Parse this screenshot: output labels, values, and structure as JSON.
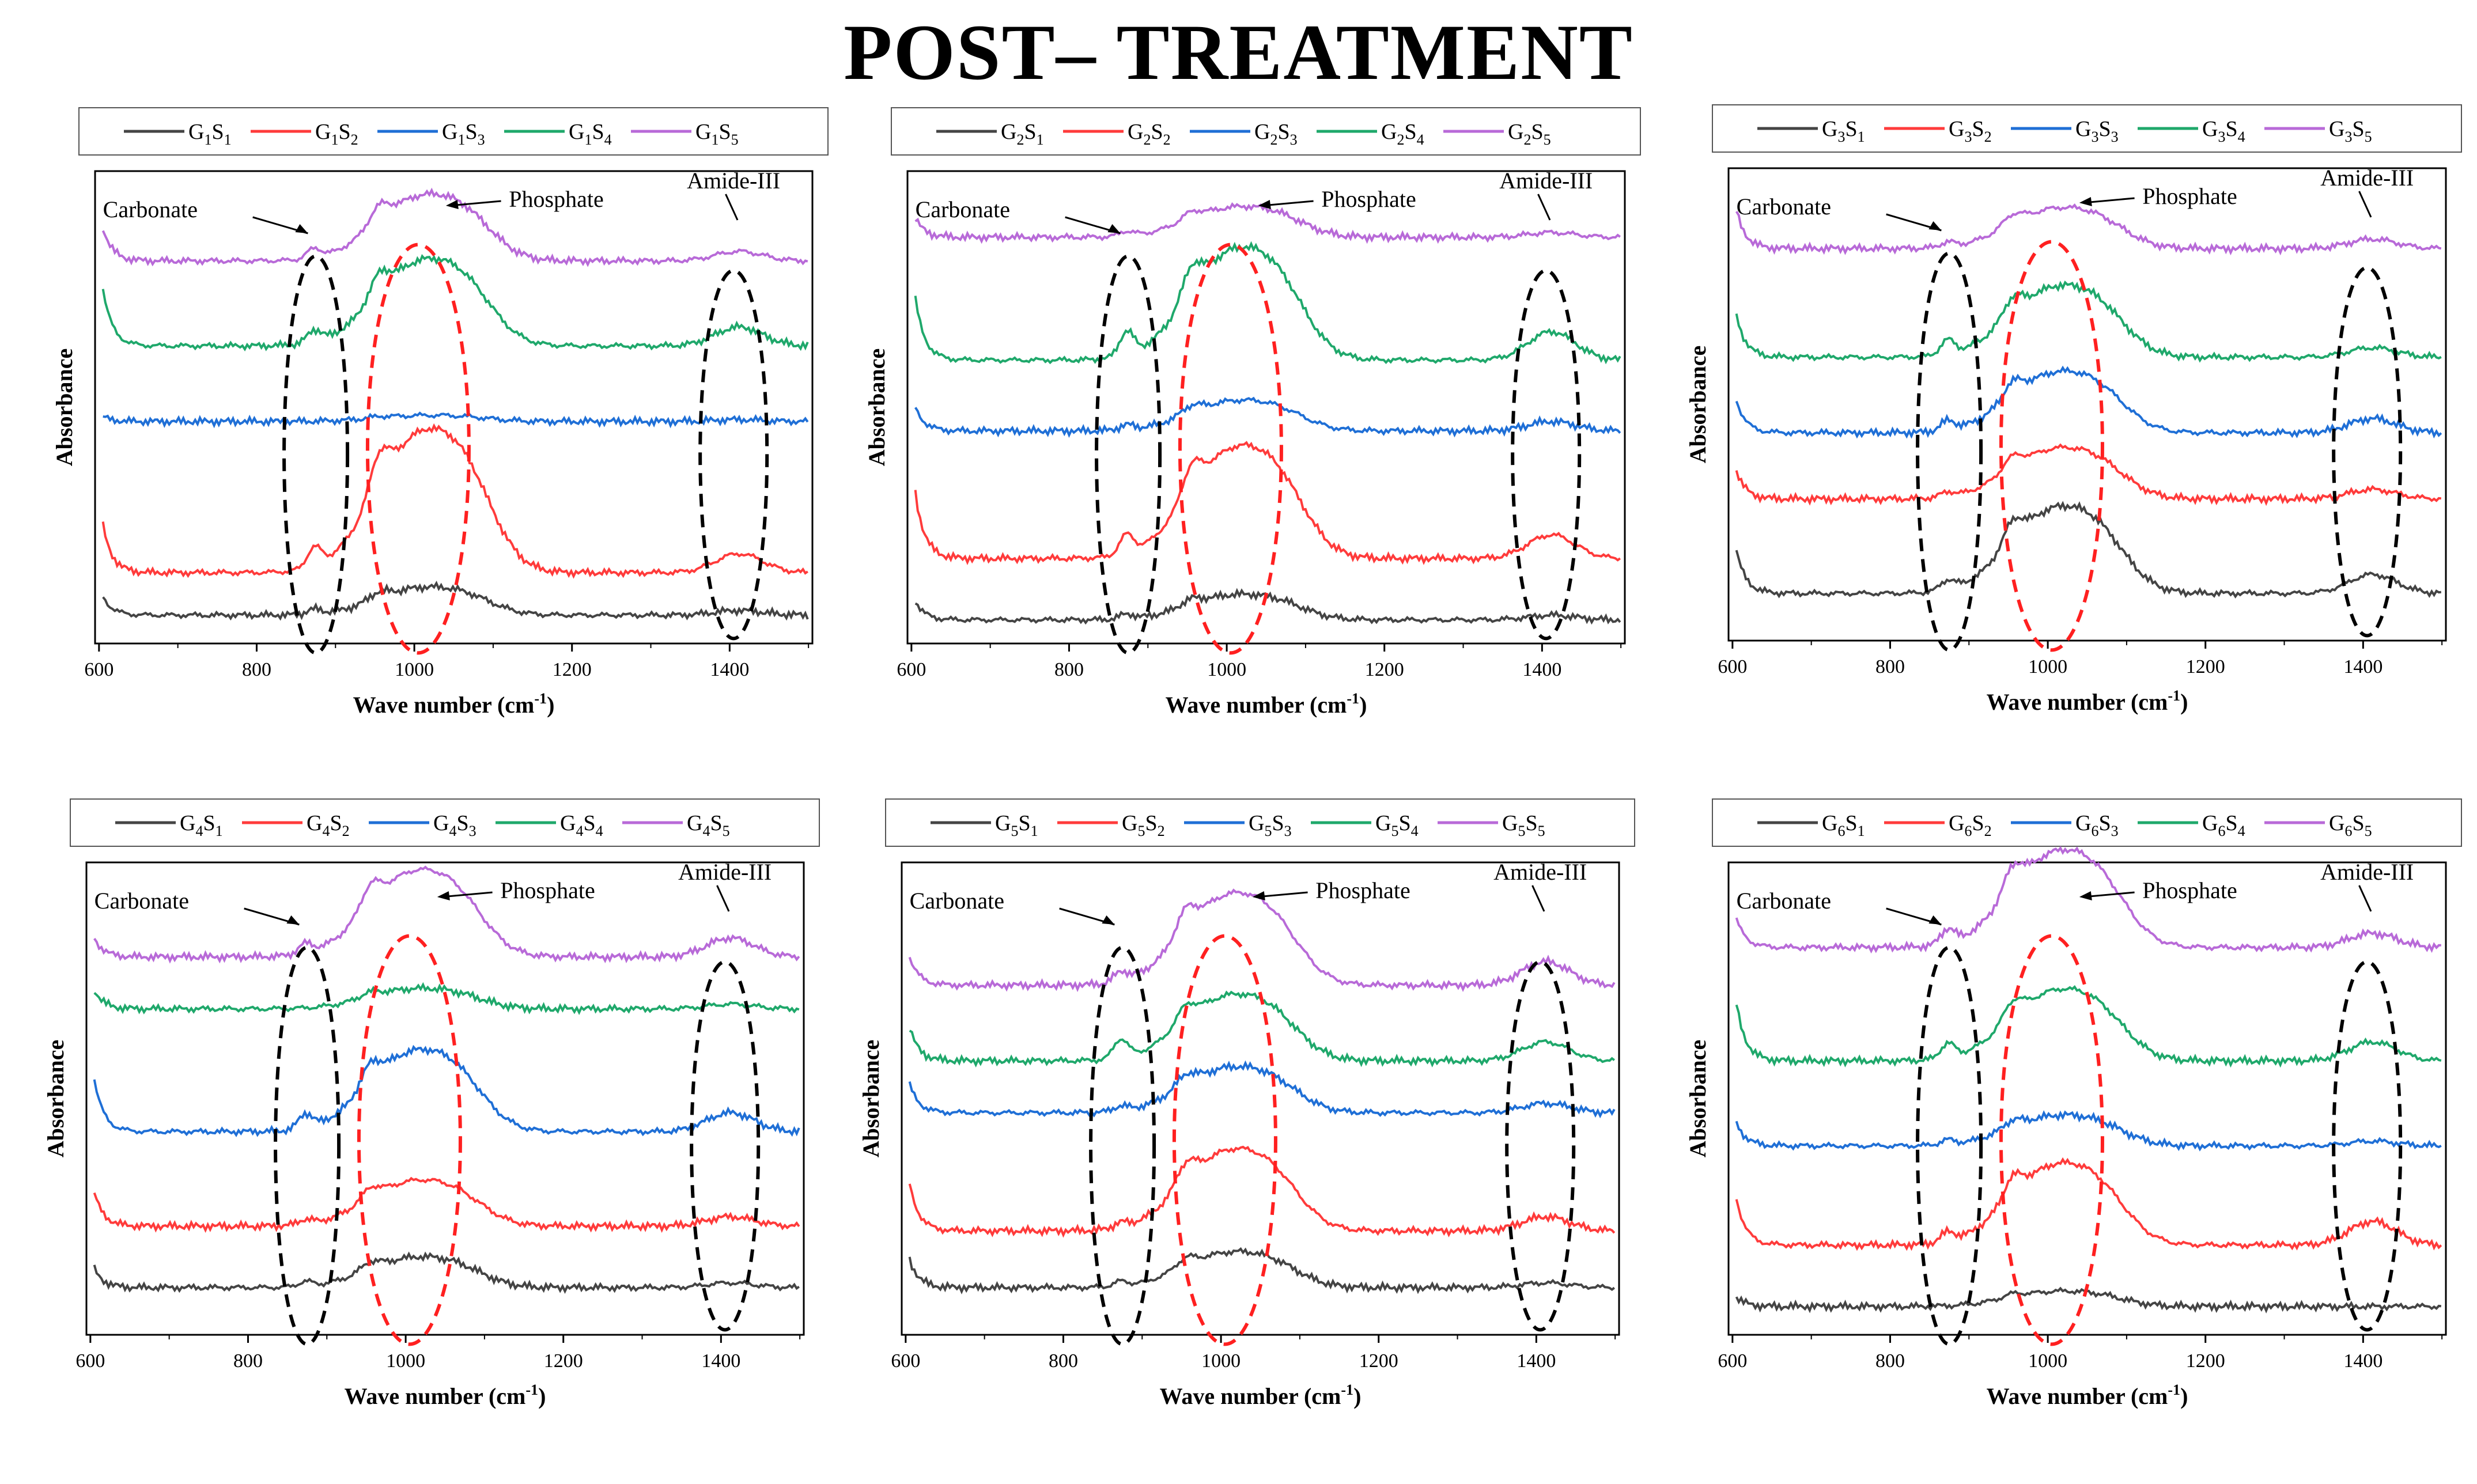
{
  "page": {
    "title": "POST– TREATMENT"
  },
  "colors": {
    "S1": "#444444",
    "S2": "#ff3b3b",
    "S3": "#1f6fd6",
    "S4": "#1fa86b",
    "S5": "#b86ad8",
    "carbonate_ellipse": "#000000",
    "phosphate_ellipse": "#ff2020",
    "amide_ellipse": "#000000"
  },
  "chart_data": [
    {
      "type": "line",
      "panel": "G1",
      "legend": [
        {
          "group": "G",
          "g": "1",
          "sample": "S",
          "s": "1"
        },
        {
          "group": "G",
          "g": "1",
          "sample": "S",
          "s": "2"
        },
        {
          "group": "G",
          "g": "1",
          "sample": "S",
          "s": "3"
        },
        {
          "group": "G",
          "g": "1",
          "sample": "S",
          "s": "4"
        },
        {
          "group": "G",
          "g": "1",
          "sample": "S",
          "s": "5"
        }
      ],
      "xlabel": "Wave number (cm",
      "xlabel_sup": "-1",
      "xlabel_end": ")",
      "ylabel": "Absorbance",
      "xlim": [
        595,
        1505
      ],
      "x_ticks": [
        600,
        800,
        1000,
        1200,
        1400
      ],
      "annotations": {
        "carbonate": "Carbonate",
        "phosphate": "Phosphate",
        "amide": "Amide-III"
      },
      "series": [
        {
          "name": "S1",
          "baseline": 0.06,
          "p1": 0.01,
          "p2": 0.055,
          "p3": 0.01,
          "start": 0.04
        },
        {
          "name": "S2",
          "baseline": 0.15,
          "p1": 0.04,
          "p2": 0.28,
          "p3": 0.04,
          "start": 0.1
        },
        {
          "name": "S3",
          "baseline": 0.47,
          "p1": 0.0,
          "p2": 0.012,
          "p3": 0.004,
          "start": 0.01
        },
        {
          "name": "S4",
          "baseline": 0.63,
          "p1": 0.025,
          "p2": 0.17,
          "p3": 0.04,
          "start": 0.12
        },
        {
          "name": "S5",
          "baseline": 0.81,
          "p1": 0.02,
          "p2": 0.13,
          "p3": 0.02,
          "start": 0.07
        }
      ]
    },
    {
      "type": "line",
      "panel": "G2",
      "legend": [
        {
          "group": "G",
          "g": "2",
          "sample": "S",
          "s": "1"
        },
        {
          "group": "G",
          "g": "2",
          "sample": "S",
          "s": "2"
        },
        {
          "group": "G",
          "g": "2",
          "sample": "S",
          "s": "3"
        },
        {
          "group": "G",
          "g": "2",
          "sample": "S",
          "s": "4"
        },
        {
          "group": "G",
          "g": "2",
          "sample": "S",
          "s": "5"
        }
      ],
      "xlabel": "Wave number (cm",
      "xlabel_sup": "-1",
      "xlabel_end": ")",
      "ylabel": "Absorbance",
      "xlim": [
        595,
        1505
      ],
      "x_ticks": [
        600,
        800,
        1000,
        1200,
        1400
      ],
      "annotations": {
        "carbonate": "Carbonate",
        "phosphate": "Phosphate",
        "amide": "Amide-III"
      },
      "series": [
        {
          "name": "S1",
          "baseline": 0.05,
          "p1": 0.01,
          "p2": 0.05,
          "p3": 0.01,
          "start": 0.04
        },
        {
          "name": "S2",
          "baseline": 0.18,
          "p1": 0.04,
          "p2": 0.22,
          "p3": 0.05,
          "start": 0.14
        },
        {
          "name": "S3",
          "baseline": 0.45,
          "p1": 0.01,
          "p2": 0.06,
          "p3": 0.02,
          "start": 0.05
        },
        {
          "name": "S4",
          "baseline": 0.6,
          "p1": 0.05,
          "p2": 0.22,
          "p3": 0.06,
          "start": 0.13
        },
        {
          "name": "S5",
          "baseline": 0.86,
          "p1": 0.01,
          "p2": 0.06,
          "p3": 0.01,
          "start": 0.04
        }
      ]
    },
    {
      "type": "line",
      "panel": "G3",
      "legend": [
        {
          "group": "G",
          "g": "3",
          "sample": "S",
          "s": "1"
        },
        {
          "group": "G",
          "g": "3",
          "sample": "S",
          "s": "2"
        },
        {
          "group": "G",
          "g": "3",
          "sample": "S",
          "s": "3"
        },
        {
          "group": "G",
          "g": "3",
          "sample": "S",
          "s": "4"
        },
        {
          "group": "G",
          "g": "3",
          "sample": "S",
          "s": "5"
        }
      ],
      "xlabel": "Wave number (cm",
      "xlabel_sup": "-1",
      "xlabel_end": ")",
      "ylabel": "Absorbance",
      "xlim": [
        595,
        1505
      ],
      "x_ticks": [
        600,
        800,
        1000,
        1200,
        1400
      ],
      "annotations": {
        "carbonate": "Carbonate",
        "phosphate": "Phosphate",
        "amide": "Amide-III"
      },
      "series": [
        {
          "name": "S1",
          "baseline": 0.1,
          "p1": 0.02,
          "p2": 0.17,
          "p3": 0.04,
          "start": 0.09
        },
        {
          "name": "S2",
          "baseline": 0.3,
          "p1": 0.01,
          "p2": 0.1,
          "p3": 0.02,
          "start": 0.06
        },
        {
          "name": "S3",
          "baseline": 0.44,
          "p1": 0.02,
          "p2": 0.12,
          "p3": 0.03,
          "start": 0.07
        },
        {
          "name": "S4",
          "baseline": 0.6,
          "p1": 0.03,
          "p2": 0.14,
          "p3": 0.02,
          "start": 0.09
        },
        {
          "name": "S5",
          "baseline": 0.83,
          "p1": 0.01,
          "p2": 0.08,
          "p3": 0.02,
          "start": 0.08
        }
      ]
    },
    {
      "type": "line",
      "panel": "G4",
      "legend": [
        {
          "group": "G",
          "g": "4",
          "sample": "S",
          "s": "1"
        },
        {
          "group": "G",
          "g": "4",
          "sample": "S",
          "s": "2"
        },
        {
          "group": "G",
          "g": "4",
          "sample": "S",
          "s": "3"
        },
        {
          "group": "G",
          "g": "4",
          "sample": "S",
          "s": "4"
        },
        {
          "group": "G",
          "g": "4",
          "sample": "S",
          "s": "5"
        }
      ],
      "xlabel": "Wave number (cm",
      "xlabel_sup": "-1",
      "xlabel_end": ")",
      "ylabel": "Absorbance",
      "xlim": [
        595,
        1505
      ],
      "x_ticks": [
        600,
        800,
        1000,
        1200,
        1400
      ],
      "annotations": {
        "carbonate": "Carbonate",
        "phosphate": "Phosphate",
        "amide": "Amide-III"
      },
      "series": [
        {
          "name": "S1",
          "baseline": 0.1,
          "p1": 0.01,
          "p2": 0.06,
          "p3": 0.01,
          "start": 0.04
        },
        {
          "name": "S2",
          "baseline": 0.23,
          "p1": 0.01,
          "p2": 0.09,
          "p3": 0.02,
          "start": 0.07
        },
        {
          "name": "S3",
          "baseline": 0.43,
          "p1": 0.03,
          "p2": 0.16,
          "p3": 0.04,
          "start": 0.11
        },
        {
          "name": "S4",
          "baseline": 0.69,
          "p1": 0.0,
          "p2": 0.04,
          "p3": 0.01,
          "start": 0.04
        },
        {
          "name": "S5",
          "baseline": 0.8,
          "p1": 0.02,
          "p2": 0.17,
          "p3": 0.04,
          "start": 0.04
        }
      ]
    },
    {
      "type": "line",
      "panel": "G5",
      "legend": [
        {
          "group": "G",
          "g": "5",
          "sample": "S",
          "s": "1"
        },
        {
          "group": "G",
          "g": "5",
          "sample": "S",
          "s": "2"
        },
        {
          "group": "G",
          "g": "5",
          "sample": "S",
          "s": "3"
        },
        {
          "group": "G",
          "g": "5",
          "sample": "S",
          "s": "4"
        },
        {
          "group": "G",
          "g": "5",
          "sample": "S",
          "s": "5"
        }
      ],
      "xlabel": "Wave number (cm",
      "xlabel_sup": "-1",
      "xlabel_end": ")",
      "ylabel": "Absorbance",
      "xlim": [
        595,
        1505
      ],
      "x_ticks": [
        600,
        800,
        1000,
        1200,
        1400
      ],
      "annotations": {
        "carbonate": "Carbonate",
        "phosphate": "Phosphate",
        "amide": "Amide-III"
      },
      "series": [
        {
          "name": "S1",
          "baseline": 0.1,
          "p1": 0.01,
          "p2": 0.07,
          "p3": 0.01,
          "start": 0.06
        },
        {
          "name": "S2",
          "baseline": 0.22,
          "p1": 0.01,
          "p2": 0.16,
          "p3": 0.03,
          "start": 0.1
        },
        {
          "name": "S3",
          "baseline": 0.47,
          "p1": 0.01,
          "p2": 0.09,
          "p3": 0.02,
          "start": 0.06
        },
        {
          "name": "S4",
          "baseline": 0.58,
          "p1": 0.04,
          "p2": 0.13,
          "p3": 0.04,
          "start": 0.07
        },
        {
          "name": "S5",
          "baseline": 0.74,
          "p1": 0.02,
          "p2": 0.18,
          "p3": 0.05,
          "start": 0.06
        }
      ]
    },
    {
      "type": "line",
      "panel": "G6",
      "legend": [
        {
          "group": "G",
          "g": "6",
          "sample": "S",
          "s": "1"
        },
        {
          "group": "G",
          "g": "6",
          "sample": "S",
          "s": "2"
        },
        {
          "group": "G",
          "g": "6",
          "sample": "S",
          "s": "3"
        },
        {
          "group": "G",
          "g": "6",
          "sample": "S",
          "s": "4"
        },
        {
          "group": "G",
          "g": "6",
          "sample": "S",
          "s": "5"
        }
      ],
      "xlabel": "Wave number (cm",
      "xlabel_sup": "-1",
      "xlabel_end": ")",
      "ylabel": "Absorbance",
      "xlim": [
        595,
        1505
      ],
      "x_ticks": [
        600,
        800,
        1000,
        1200,
        1400
      ],
      "annotations": {
        "carbonate": "Carbonate",
        "phosphate": "Phosphate",
        "amide": "Amide-III"
      },
      "series": [
        {
          "name": "S1",
          "baseline": 0.06,
          "p1": 0.0,
          "p2": 0.03,
          "p3": 0.0,
          "start": 0.02
        },
        {
          "name": "S2",
          "baseline": 0.19,
          "p1": 0.02,
          "p2": 0.16,
          "p3": 0.05,
          "start": 0.1
        },
        {
          "name": "S3",
          "baseline": 0.4,
          "p1": 0.01,
          "p2": 0.06,
          "p3": 0.01,
          "start": 0.05
        },
        {
          "name": "S4",
          "baseline": 0.58,
          "p1": 0.03,
          "p2": 0.14,
          "p3": 0.04,
          "start": 0.12
        },
        {
          "name": "S5",
          "baseline": 0.82,
          "p1": 0.03,
          "p2": 0.19,
          "p3": 0.03,
          "start": 0.06
        }
      ]
    }
  ]
}
